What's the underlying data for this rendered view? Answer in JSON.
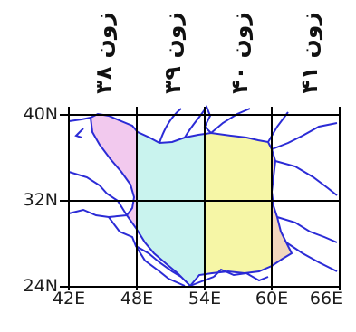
{
  "zones": [
    {
      "label": "زون ۳۸",
      "lon_range": [
        42,
        48
      ],
      "fill": "#f2c9ee"
    },
    {
      "label": "زون ۳۹",
      "lon_range": [
        48,
        54
      ],
      "fill": "#c9f3ee"
    },
    {
      "label": "زون ۴۰",
      "lon_range": [
        54,
        60
      ],
      "fill": "#f6f6a6"
    },
    {
      "label": "زون ۴۱",
      "lon_range": [
        60,
        66
      ],
      "fill": "#f1d6bd"
    }
  ],
  "latitude_labels": [
    "40N",
    "32N",
    "24N"
  ],
  "longitude_labels": [
    "42E",
    "48E",
    "54E",
    "60E",
    "66E"
  ],
  "colors": {
    "grid": "#000000",
    "border": "#2b2bd6"
  }
}
